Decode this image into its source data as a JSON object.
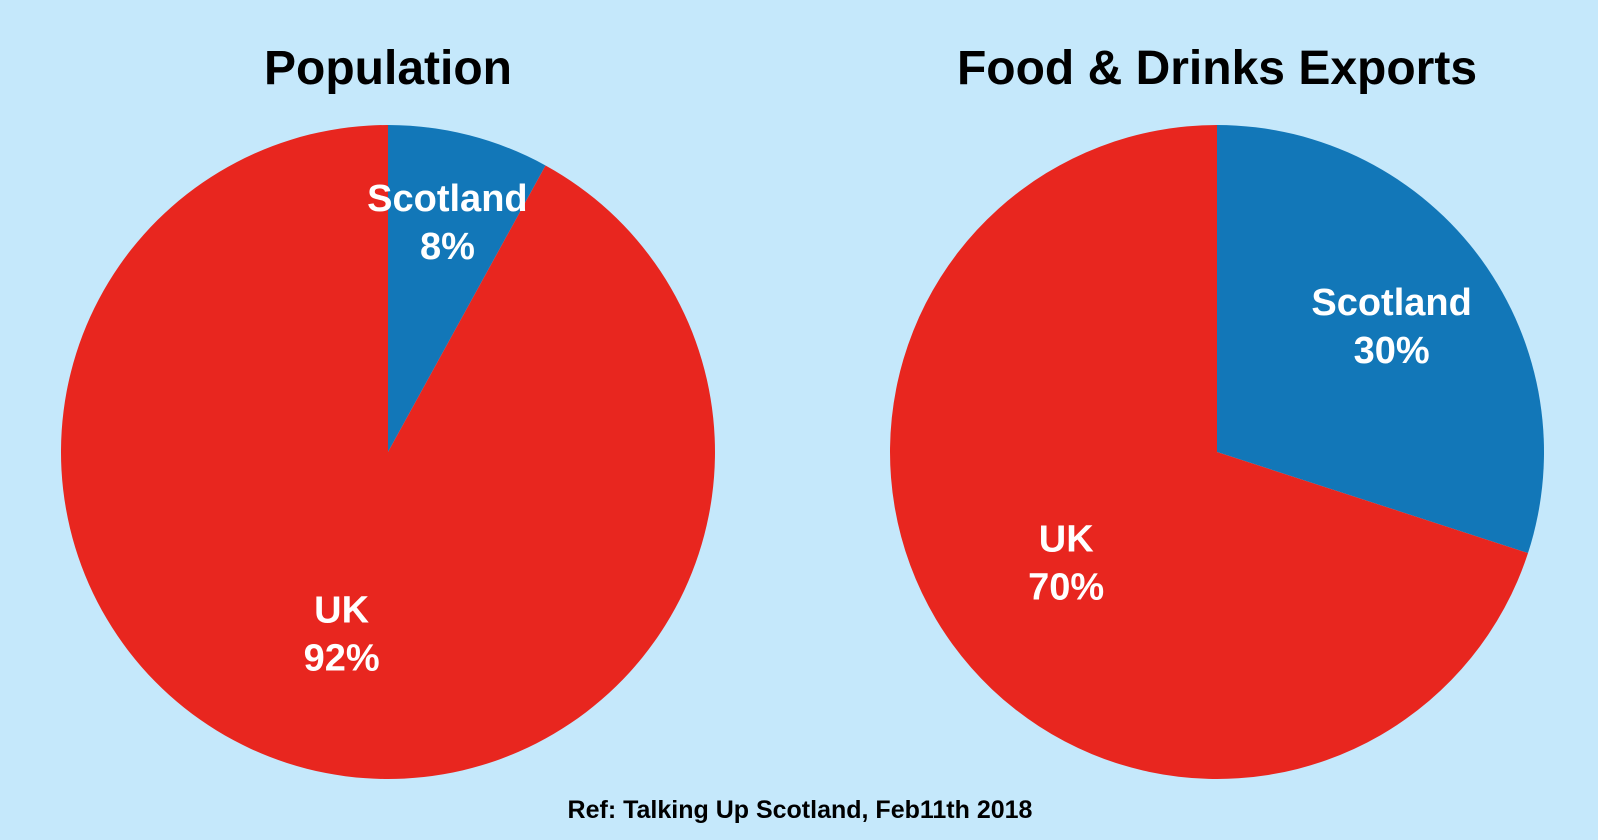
{
  "chart_data": [
    {
      "type": "pie",
      "title": "Population",
      "slices": [
        {
          "label": "Scotland",
          "value_text": "8%",
          "value": 8,
          "color": "#1277b8"
        },
        {
          "label": "UK",
          "value_text": "92%",
          "value": 92,
          "color": "#e8261f"
        }
      ],
      "start_angle_deg": 0,
      "direction": "clockwise",
      "legend": "none"
    },
    {
      "type": "pie",
      "title": "Food & Drinks Exports",
      "slices": [
        {
          "label": "Scotland",
          "value_text": "30%",
          "value": 30,
          "color": "#1277b8"
        },
        {
          "label": "UK",
          "value_text": "70%",
          "value": 70,
          "color": "#e8261f"
        }
      ],
      "start_angle_deg": 0,
      "direction": "clockwise",
      "legend": "none"
    }
  ],
  "footer": {
    "reference": "Ref: Talking Up Scotland, Feb11th 2018"
  },
  "colors": {
    "background": "#c5e8fb",
    "scotland": "#1277b8",
    "uk": "#e8261f",
    "label_text": "#ffffff",
    "title_text": "#000000"
  }
}
